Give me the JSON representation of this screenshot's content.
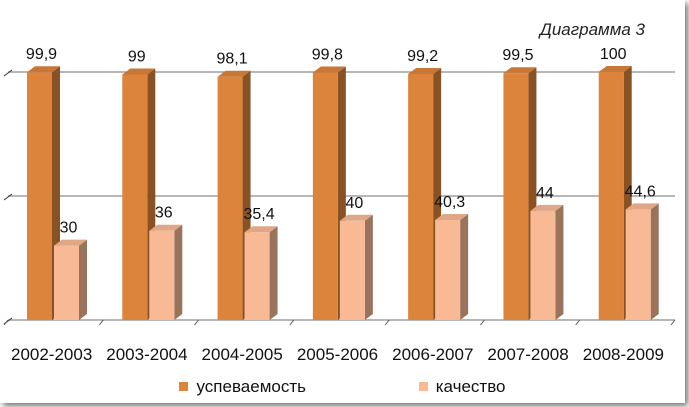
{
  "chart_data": {
    "type": "bar",
    "title": "Диаграмма 3",
    "categories": [
      "2002-2003",
      "2003-2004",
      "2004-2005",
      "2005-2006",
      "2006-2007",
      "2007-2008",
      "2008-2009"
    ],
    "series": [
      {
        "name": "успеваемость",
        "values": [
          99.9,
          99,
          98.1,
          99.8,
          99.2,
          99.5,
          100
        ],
        "labels": [
          "99,9",
          "99",
          "98,1",
          "99,8",
          "99,2",
          "99,5",
          "100"
        ]
      },
      {
        "name": "качество",
        "values": [
          30,
          36,
          35.4,
          40,
          40.3,
          44,
          44.6
        ],
        "labels": [
          "30",
          "36",
          "35,4",
          "40",
          "40,3",
          "44",
          "44,6"
        ]
      }
    ],
    "ylim": [
      0,
      100
    ],
    "grid": true,
    "legend_position": "bottom",
    "style": "3d clustered column"
  },
  "colors": {
    "series_1": "#DD843C",
    "series_2": "#F8B995",
    "gridline": "#8c8c8c"
  }
}
